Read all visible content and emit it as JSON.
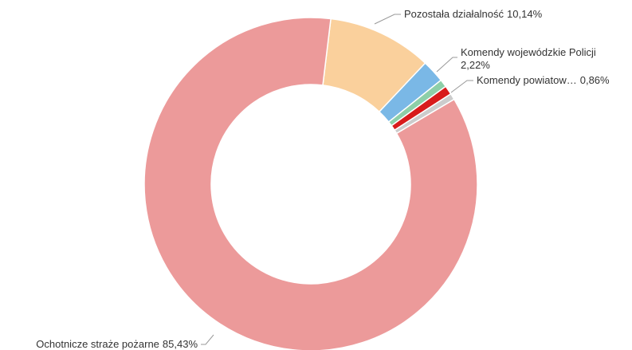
{
  "chart_data": {
    "type": "donut",
    "categories": [
      "Pozostała działalność",
      "Komendy wojewódzkie Policji",
      null,
      "Komendy powiatow…",
      null,
      "Ochotnicze straże pożarne"
    ],
    "values": [
      10.14,
      2.22,
      0.75,
      0.86,
      0.61,
      85.43
    ],
    "value_labels": [
      "10,14%",
      "2,22%",
      null,
      "0,86%",
      null,
      "85,43%"
    ],
    "colors": [
      "#fad09c",
      "#7ab8e6",
      "#8dcfa8",
      "#d81b1b",
      "#cccccc",
      "#ec9a9a"
    ]
  }
}
